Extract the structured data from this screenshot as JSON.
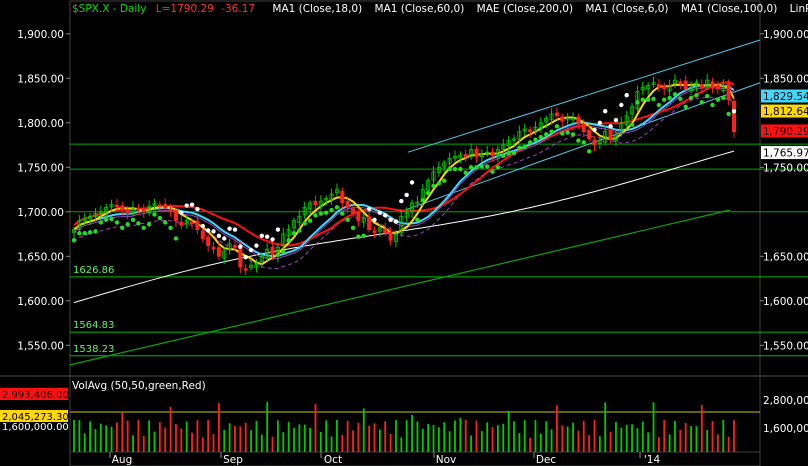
{
  "header": {
    "symbol": "$SPX.X - Daily",
    "last": "L=1790.29",
    "change": "-36.17",
    "studies": [
      "MA1 (Close,18,0)",
      "MA1 (Close,60,0)",
      "MAE (Close,200,0)",
      "MA1 (Close,6,0)",
      "MA1 (Close,100,0)",
      "LinReg ..."
    ]
  },
  "colors": {
    "background": "#000000",
    "up": "#00cc00",
    "down": "#ff2020",
    "ma18": "#ff1010",
    "ma6": "#ffd800",
    "ma60": "#40d8ff",
    "ma200": "#ffffff",
    "ma100": "#20b020",
    "envelope": "#a040c0",
    "psar_up": "#22dd22",
    "psar_dn": "#ffffff",
    "channel": "#50c8e8",
    "level_line": "#00aa00"
  },
  "price_axis": {
    "ticks": [
      "1,900.00",
      "1,850.00",
      "1,800.00",
      "1,750.00",
      "1,700.00",
      "1,650.00",
      "1,600.00",
      "1,550.00"
    ],
    "ticks_right": [
      "1,900.00",
      "1,850.00",
      "1,750.00",
      "1,650.00",
      "1,600.00",
      "1,550.00"
    ],
    "price_tags": [
      {
        "text": "1,829.54",
        "value": 1829.54,
        "bg": "#40d8ff",
        "fg": "#000000"
      },
      {
        "text": "1,812.64",
        "value": 1812.64,
        "bg": "#ffd800",
        "fg": "#000000"
      },
      {
        "text": "1,790.29",
        "value": 1790.29,
        "bg": "#ff1010",
        "fg": "#000000"
      },
      {
        "text": "1,765.97",
        "value": 1765.97,
        "bg": "#ffffff",
        "fg": "#000000"
      }
    ]
  },
  "levels": [
    {
      "label": "1626.86",
      "value": 1626.86
    },
    {
      "label": "1564.83",
      "value": 1564.83
    },
    {
      "label": "1538.23",
      "value": 1538.23
    }
  ],
  "volume": {
    "title": "VolAvg (50,50,green,Red)",
    "tag_red": "2,993,406.00",
    "tag_yellow": "2,045,273.30",
    "left_tick": "1,600,000.00",
    "right_ticks": [
      "2,800,000",
      "1,600,000"
    ]
  },
  "months": [
    "Aug",
    "Sep",
    "Oct",
    "Nov",
    "Dec",
    "'14"
  ],
  "chart_data": {
    "type": "candlestick",
    "title": "$SPX.X - Daily",
    "ylim": [
      1520,
      1920
    ],
    "closes": [
      1680,
      1690,
      1692,
      1695,
      1698,
      1700,
      1705,
      1708,
      1706,
      1702,
      1698,
      1705,
      1703,
      1700,
      1706,
      1709,
      1707,
      1704,
      1700,
      1690,
      1685,
      1690,
      1688,
      1680,
      1670,
      1662,
      1658,
      1650,
      1656,
      1664,
      1660,
      1638,
      1635,
      1640,
      1642,
      1650,
      1658,
      1652,
      1660,
      1675,
      1680,
      1690,
      1695,
      1705,
      1710,
      1708,
      1712,
      1715,
      1720,
      1725,
      1710,
      1705,
      1698,
      1690,
      1693,
      1680,
      1677,
      1682,
      1676,
      1668,
      1675,
      1695,
      1699,
      1710,
      1711,
      1725,
      1735,
      1745,
      1750,
      1755,
      1760,
      1762,
      1764,
      1762,
      1770,
      1762,
      1765,
      1767,
      1763,
      1770,
      1775,
      1780,
      1782,
      1790,
      1793,
      1790,
      1795,
      1800,
      1805,
      1810,
      1808,
      1802,
      1805,
      1805,
      1800,
      1790,
      1782,
      1775,
      1780,
      1790,
      1782,
      1786,
      1800,
      1808,
      1818,
      1835,
      1840,
      1842,
      1845,
      1840,
      1838,
      1842,
      1848,
      1845,
      1838,
      1840,
      1845,
      1839,
      1848,
      1840,
      1838,
      1842,
      1826,
      1790
    ],
    "series": [
      {
        "name": "MA1 (Close,18,0)"
      },
      {
        "name": "MA1 (Close,6,0)"
      },
      {
        "name": "MA1 (Close,60,0)"
      },
      {
        "name": "MAE (Close,200,0)"
      },
      {
        "name": "MA1 (Close,100,0)"
      }
    ]
  }
}
